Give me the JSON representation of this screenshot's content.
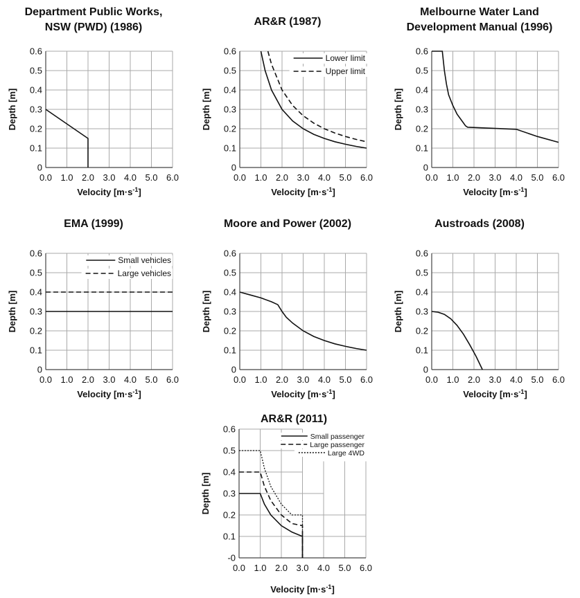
{
  "chart_data": [
    {
      "id": "pwd",
      "type": "line",
      "title_lines": [
        "Department Public Works,",
        "NSW (PWD) (1986)"
      ],
      "xlabel": "Velocity [m·s",
      "xlabel_sup": "-1",
      "xlabel_end": "]",
      "ylabel": "Depth [m]",
      "xlim": [
        0,
        6
      ],
      "ylim": [
        0,
        0.6
      ],
      "xticks": [
        "0.0",
        "1.0",
        "2.0",
        "3.0",
        "4.0",
        "5.0",
        "6.0"
      ],
      "yticks": [
        "0",
        "0.1",
        "0.2",
        "0.3",
        "0.4",
        "0.5",
        "0.6"
      ],
      "grid": true,
      "series": [
        {
          "style": "solid",
          "x": [
            0,
            2.0,
            2.0
          ],
          "y": [
            0.3,
            0.15,
            0
          ]
        }
      ]
    },
    {
      "id": "arr1987",
      "type": "line",
      "title_lines": [
        "AR&R (1987)"
      ],
      "xlabel": "Velocity [m·s",
      "xlabel_sup": "-1",
      "xlabel_end": "]",
      "ylabel": "Depth [m]",
      "xlim": [
        0,
        6
      ],
      "ylim": [
        0,
        0.6
      ],
      "xticks": [
        "0.0",
        "1.0",
        "2.0",
        "3.0",
        "4.0",
        "5.0",
        "6.0"
      ],
      "yticks": [
        "0",
        "0.1",
        "0.2",
        "0.3",
        "0.4",
        "0.5",
        "0.6"
      ],
      "grid": true,
      "legend": "top-right",
      "series": [
        {
          "name": "Lower limit",
          "style": "solid",
          "x": [
            1.0,
            1.2,
            1.5,
            2.0,
            2.5,
            3.0,
            3.5,
            4.0,
            4.5,
            5.0,
            5.5,
            6.0
          ],
          "y": [
            0.6,
            0.5,
            0.4,
            0.3,
            0.24,
            0.2,
            0.171,
            0.15,
            0.133,
            0.12,
            0.109,
            0.1
          ]
        },
        {
          "name": "Upper limit",
          "style": "dashed",
          "x": [
            1.33,
            1.5,
            2.0,
            2.5,
            3.0,
            3.5,
            4.0,
            4.5,
            5.0,
            5.5,
            6.0
          ],
          "y": [
            0.6,
            0.533,
            0.4,
            0.32,
            0.267,
            0.229,
            0.2,
            0.178,
            0.16,
            0.145,
            0.133
          ]
        }
      ]
    },
    {
      "id": "melbourne",
      "type": "line",
      "title_lines": [
        "Melbourne Water Land",
        "Development Manual (1996)"
      ],
      "xlabel": "Velocity [m·s",
      "xlabel_sup": "-1",
      "xlabel_end": "]",
      "ylabel": "Depth [m]",
      "xlim": [
        0,
        6
      ],
      "ylim": [
        0,
        0.6
      ],
      "xticks": [
        "0.0",
        "1.0",
        "2.0",
        "3.0",
        "4.0",
        "5.0",
        "6.0"
      ],
      "yticks": [
        "0",
        "0.1",
        "0.2",
        "0.3",
        "0.4",
        "0.5",
        "0.6"
      ],
      "grid": true,
      "series": [
        {
          "style": "solid",
          "x": [
            0,
            0.5,
            0.55,
            0.6,
            0.7,
            0.8,
            1.0,
            1.2,
            1.5,
            1.6,
            1.7,
            4.0,
            5.0,
            6.0
          ],
          "y": [
            0.6,
            0.6,
            0.55,
            0.5,
            0.43,
            0.375,
            0.32,
            0.275,
            0.23,
            0.215,
            0.208,
            0.197,
            0.16,
            0.13
          ]
        }
      ]
    },
    {
      "id": "ema",
      "type": "line",
      "title_lines": [
        "EMA (1999)"
      ],
      "xlabel": "Velocity [m·s",
      "xlabel_sup": "-1",
      "xlabel_end": "]",
      "ylabel": "Depth [m]",
      "xlim": [
        0,
        6
      ],
      "ylim": [
        0,
        0.6
      ],
      "xticks": [
        "0.0",
        "1.0",
        "2.0",
        "3.0",
        "4.0",
        "5.0",
        "6.0"
      ],
      "yticks": [
        "0",
        "0.1",
        "0.2",
        "0.3",
        "0.4",
        "0.5",
        "0.6"
      ],
      "grid": true,
      "legend": "top-right",
      "series": [
        {
          "name": "Small vehicles",
          "style": "solid",
          "x": [
            0,
            6
          ],
          "y": [
            0.3,
            0.3
          ]
        },
        {
          "name": "Large vehicles",
          "style": "dashed",
          "x": [
            0,
            6
          ],
          "y": [
            0.4,
            0.4
          ]
        }
      ]
    },
    {
      "id": "moore",
      "type": "line",
      "title_lines": [
        "Moore and Power (2002)"
      ],
      "xlabel": "Velocity [m·s",
      "xlabel_sup": "-1",
      "xlabel_end": "]",
      "ylabel": "Depth [m]",
      "xlim": [
        0,
        6
      ],
      "ylim": [
        0,
        0.6
      ],
      "xticks": [
        "0.0",
        "1.0",
        "2.0",
        "3.0",
        "4.0",
        "5.0",
        "6.0"
      ],
      "yticks": [
        "0",
        "0.1",
        "0.2",
        "0.3",
        "0.4",
        "0.5",
        "0.6"
      ],
      "grid": true,
      "series": [
        {
          "style": "solid",
          "x": [
            0,
            0.5,
            1.0,
            1.5,
            1.8,
            2.0,
            2.2,
            2.5,
            3.0,
            3.5,
            4.0,
            4.5,
            5.0,
            5.5,
            6.0
          ],
          "y": [
            0.4,
            0.385,
            0.37,
            0.35,
            0.335,
            0.3,
            0.27,
            0.24,
            0.2,
            0.171,
            0.15,
            0.133,
            0.12,
            0.109,
            0.1
          ]
        }
      ]
    },
    {
      "id": "austroads",
      "type": "line",
      "title_lines": [
        "Austroads (2008)"
      ],
      "xlabel": "Velocity [m·s",
      "xlabel_sup": "-1",
      "xlabel_end": "]",
      "ylabel": "Depth [m]",
      "xlim": [
        0,
        6
      ],
      "ylim": [
        0,
        0.6
      ],
      "xticks": [
        "0.0",
        "1.0",
        "2.0",
        "3.0",
        "4.0",
        "5.0",
        "6.0"
      ],
      "yticks": [
        "0",
        "0.1",
        "0.2",
        "0.3",
        "0.4",
        "0.5",
        "0.6"
      ],
      "grid": true,
      "series": [
        {
          "style": "solid",
          "x": [
            0,
            0.3,
            0.6,
            0.9,
            1.2,
            1.5,
            1.8,
            2.1,
            2.4
          ],
          "y": [
            0.3,
            0.296,
            0.285,
            0.262,
            0.228,
            0.183,
            0.128,
            0.068,
            0.0
          ]
        }
      ]
    },
    {
      "id": "arr2011",
      "type": "line",
      "title_lines": [
        "AR&R (2011)"
      ],
      "xlabel": "Velocity [m·s",
      "xlabel_sup": "-1",
      "xlabel_end": "]",
      "ylabel": "Depth [m]",
      "xlim": [
        0,
        6
      ],
      "ylim": [
        0,
        0.6
      ],
      "xticks": [
        "0.0",
        "1.0",
        "2.0",
        "3.0",
        "4.0",
        "5.0",
        "6.0"
      ],
      "yticks": [
        "-0",
        "0.1",
        "0.2",
        "0.3",
        "0.4",
        "0.5",
        "0.6"
      ],
      "grid": true,
      "grid_partial": true,
      "legend": "top-right",
      "series": [
        {
          "name": "Small passenger",
          "style": "solid",
          "x": [
            0,
            1.0,
            1.2,
            1.5,
            2.0,
            2.5,
            3.0,
            3.0
          ],
          "y": [
            0.3,
            0.3,
            0.25,
            0.2,
            0.15,
            0.12,
            0.1,
            0
          ]
        },
        {
          "name": "Large passenger",
          "style": "dashed",
          "x": [
            0,
            1.0,
            1.2,
            1.5,
            2.0,
            2.5,
            3.0,
            3.0
          ],
          "y": [
            0.4,
            0.4,
            0.333,
            0.267,
            0.2,
            0.16,
            0.15,
            0
          ]
        },
        {
          "name": "Large 4WD",
          "style": "dotted",
          "x": [
            0,
            1.0,
            1.2,
            1.5,
            2.0,
            2.5,
            3.0,
            3.0
          ],
          "y": [
            0.5,
            0.5,
            0.417,
            0.333,
            0.25,
            0.2,
            0.2,
            0
          ]
        }
      ]
    }
  ]
}
